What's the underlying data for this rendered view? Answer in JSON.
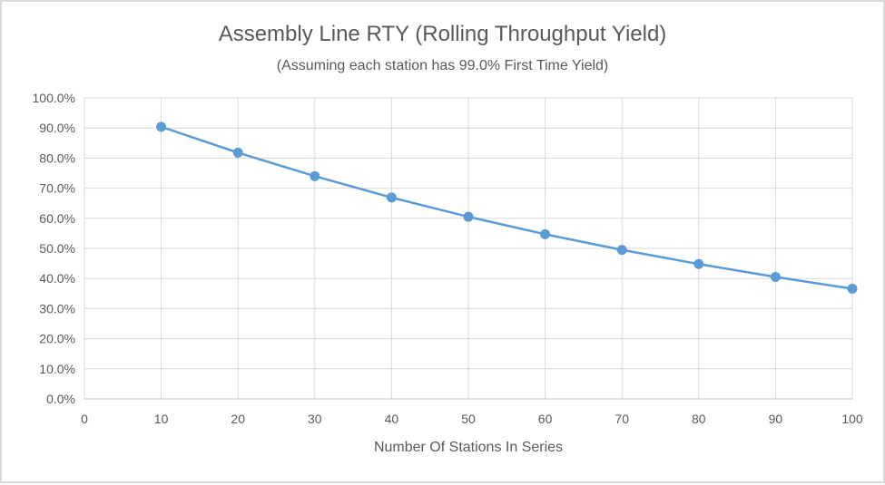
{
  "chart_data": {
    "type": "line",
    "title": "Assembly Line RTY (Rolling Throughput Yield)",
    "subtitle": "(Assuming each station has 99.0% First Time Yield)",
    "xlabel": "Number Of Stations In Series",
    "ylabel": "",
    "xlim": [
      0,
      100
    ],
    "ylim": [
      0,
      100
    ],
    "x_ticks": [
      "0",
      "10",
      "20",
      "30",
      "40",
      "50",
      "60",
      "70",
      "80",
      "90",
      "100"
    ],
    "y_ticks": [
      "0.0%",
      "10.0%",
      "20.0%",
      "30.0%",
      "40.0%",
      "50.0%",
      "60.0%",
      "70.0%",
      "80.0%",
      "90.0%",
      "100.0%"
    ],
    "grid": true,
    "legend": "none",
    "series": [
      {
        "name": "RTY",
        "color": "#5b9bd5",
        "x": [
          10,
          20,
          30,
          40,
          50,
          60,
          70,
          80,
          90,
          100
        ],
        "values": [
          90.4,
          81.8,
          74.0,
          66.9,
          60.5,
          54.7,
          49.5,
          44.8,
          40.5,
          36.6
        ]
      }
    ]
  }
}
